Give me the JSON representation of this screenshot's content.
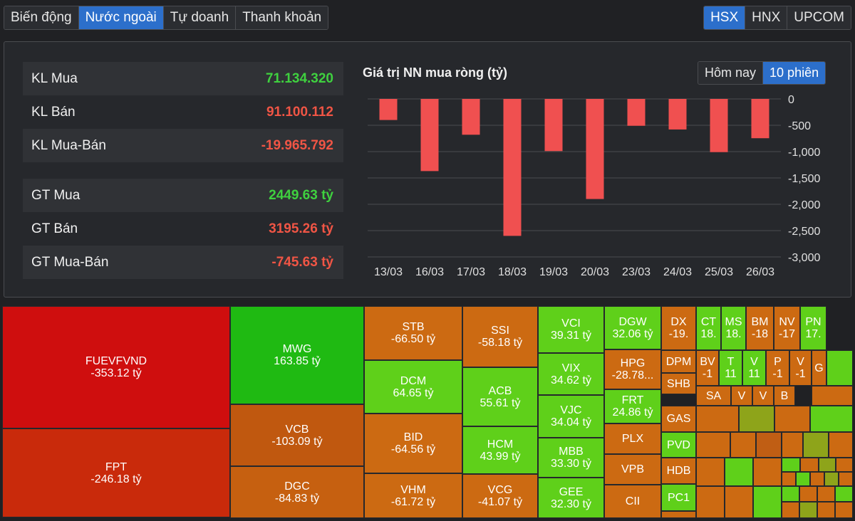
{
  "tabs": [
    "Biến động",
    "Nước ngoài",
    "Tự doanh",
    "Thanh khoản"
  ],
  "active_tab": "Nước ngoài",
  "exchanges": [
    "HSX",
    "HNX",
    "UPCOM"
  ],
  "active_exchange": "HSX",
  "stats": {
    "volume": [
      {
        "label": "KL Mua",
        "value": "71.134.320",
        "tone": "pos"
      },
      {
        "label": "KL Bán",
        "value": "91.100.112",
        "tone": "neg"
      },
      {
        "label": "KL Mua-Bán",
        "value": "-19.965.792",
        "tone": "neg"
      }
    ],
    "value": [
      {
        "label": "GT Mua",
        "value": "2449.63 tỷ",
        "tone": "pos"
      },
      {
        "label": "GT Bán",
        "value": "3195.26 tỷ",
        "tone": "neg"
      },
      {
        "label": "GT Mua-Bán",
        "value": "-745.63 tỷ",
        "tone": "neg"
      }
    ]
  },
  "chart_title": "Giá trị NN mua ròng (tỷ)",
  "range_tabs": [
    "Hôm nay",
    "10 phiên"
  ],
  "active_range": "10 phiên",
  "chart_data": {
    "type": "bar",
    "title": "Giá trị NN mua ròng (tỷ)",
    "categories": [
      "13/03",
      "16/03",
      "17/03",
      "18/03",
      "19/03",
      "20/03",
      "23/03",
      "24/03",
      "25/03",
      "26/03"
    ],
    "values": [
      -400,
      -1370,
      -680,
      -2600,
      -990,
      -1900,
      -510,
      -580,
      -1010,
      -746
    ],
    "ylim": [
      -3000,
      0
    ],
    "yticks": [
      0,
      -500,
      -1000,
      -1500,
      -2000,
      -2500,
      -3000
    ],
    "ytick_labels": [
      "0",
      "-500",
      "-1,000",
      "-1,500",
      "-2,000",
      "-2,500",
      "-3,000"
    ],
    "grid": true,
    "bar_color": "#f05050"
  },
  "colors": {
    "dark_red": "#cf0e0e",
    "red": "#c92a0b",
    "orange": "#cc6a12",
    "dark_orange": "#c05e14",
    "green": "#1fba12",
    "light_green": "#5fd01a",
    "olive": "#8ea41a",
    "grid": "#4a4c50",
    "accent": "#2c6fcb"
  },
  "treemap": [
    {
      "ticker": "FUEVFVND",
      "value": "-353.12 tỷ",
      "color": "#cf0e0e"
    },
    {
      "ticker": "FPT",
      "value": "-246.18 tỷ",
      "color": "#c92a0b"
    },
    {
      "ticker": "MWG",
      "value": "163.85 tỷ",
      "color": "#1fba12"
    },
    {
      "ticker": "VCB",
      "value": "-103.09 tỷ",
      "color": "#c0580f"
    },
    {
      "ticker": "DGC",
      "value": "-84.83 tỷ",
      "color": "#c66010"
    },
    {
      "ticker": "STB",
      "value": "-66.50 tỷ",
      "color": "#cc6a12"
    },
    {
      "ticker": "DCM",
      "value": "64.65 tỷ",
      "color": "#5fd01a"
    },
    {
      "ticker": "BID",
      "value": "-64.56 tỷ",
      "color": "#cc6a12"
    },
    {
      "ticker": "VHM",
      "value": "-61.72 tỷ",
      "color": "#cc6a12"
    },
    {
      "ticker": "SSI",
      "value": "-58.18 tỷ",
      "color": "#cc6a12"
    },
    {
      "ticker": "ACB",
      "value": "55.61 tỷ",
      "color": "#5fd01a"
    },
    {
      "ticker": "HCM",
      "value": "43.99 tỷ",
      "color": "#5fd01a"
    },
    {
      "ticker": "VCG",
      "value": "-41.07 tỷ",
      "color": "#cc6a12"
    },
    {
      "ticker": "VCI",
      "value": "39.31 tỷ",
      "color": "#5fd01a"
    },
    {
      "ticker": "VIX",
      "value": "34.62 tỷ",
      "color": "#5fd01a"
    },
    {
      "ticker": "VJC",
      "value": "34.04 tỷ",
      "color": "#5fd01a"
    },
    {
      "ticker": "MBB",
      "value": "33.30 tỷ",
      "color": "#5fd01a"
    },
    {
      "ticker": "GEE",
      "value": "32.30 tỷ",
      "color": "#5fd01a"
    },
    {
      "ticker": "DGW",
      "value": "32.06 tỷ",
      "color": "#5fd01a"
    },
    {
      "ticker": "HPG",
      "value": "-28.78...",
      "color": "#cc6a12"
    },
    {
      "ticker": "FRT",
      "value": "24.86 tỷ",
      "color": "#5fd01a"
    },
    {
      "ticker": "PLX",
      "value": "",
      "color": "#cc6a12"
    },
    {
      "ticker": "VPB",
      "value": "",
      "color": "#cc6a12"
    },
    {
      "ticker": "CII",
      "value": "",
      "color": "#cc6a12"
    },
    {
      "ticker": "DX",
      "value": "-19.",
      "color": "#cc6a12"
    },
    {
      "ticker": "CT",
      "value": "18.",
      "color": "#5fd01a"
    },
    {
      "ticker": "MS",
      "value": "18.",
      "color": "#5fd01a"
    },
    {
      "ticker": "BM",
      "value": "-18",
      "color": "#cc6a12"
    },
    {
      "ticker": "NV",
      "value": "-17",
      "color": "#cc6a12"
    },
    {
      "ticker": "PN",
      "value": "17.",
      "color": "#5fd01a"
    },
    {
      "ticker": "DPM",
      "value": "",
      "color": "#cc6a12"
    },
    {
      "ticker": "BV",
      "value": "-1",
      "color": "#cc6a12"
    },
    {
      "ticker": "T",
      "value": "11",
      "color": "#5fd01a"
    },
    {
      "ticker": "V",
      "value": "11",
      "color": "#5fd01a"
    },
    {
      "ticker": "P",
      "value": "-1",
      "color": "#cc6a12"
    },
    {
      "ticker": "V",
      "value": "-1",
      "color": "#cc6a12"
    },
    {
      "ticker": "G",
      "value": "",
      "color": "#cc6a12"
    },
    {
      "ticker": "SHB",
      "value": "",
      "color": "#cc6a12"
    },
    {
      "ticker": "SA",
      "value": "",
      "color": "#cc6a12"
    },
    {
      "ticker": "V",
      "value": "",
      "color": "#cc6a12"
    },
    {
      "ticker": "V",
      "value": "",
      "color": "#cc6a12"
    },
    {
      "ticker": "B",
      "value": "",
      "color": "#cc6a12"
    },
    {
      "ticker": "GAS",
      "value": "",
      "color": "#cc6a12"
    },
    {
      "ticker": "PVD",
      "value": "",
      "color": "#5fd01a"
    },
    {
      "ticker": "HDB",
      "value": "",
      "color": "#cc6a12"
    },
    {
      "ticker": "PC1",
      "value": "",
      "color": "#5fd01a"
    }
  ]
}
